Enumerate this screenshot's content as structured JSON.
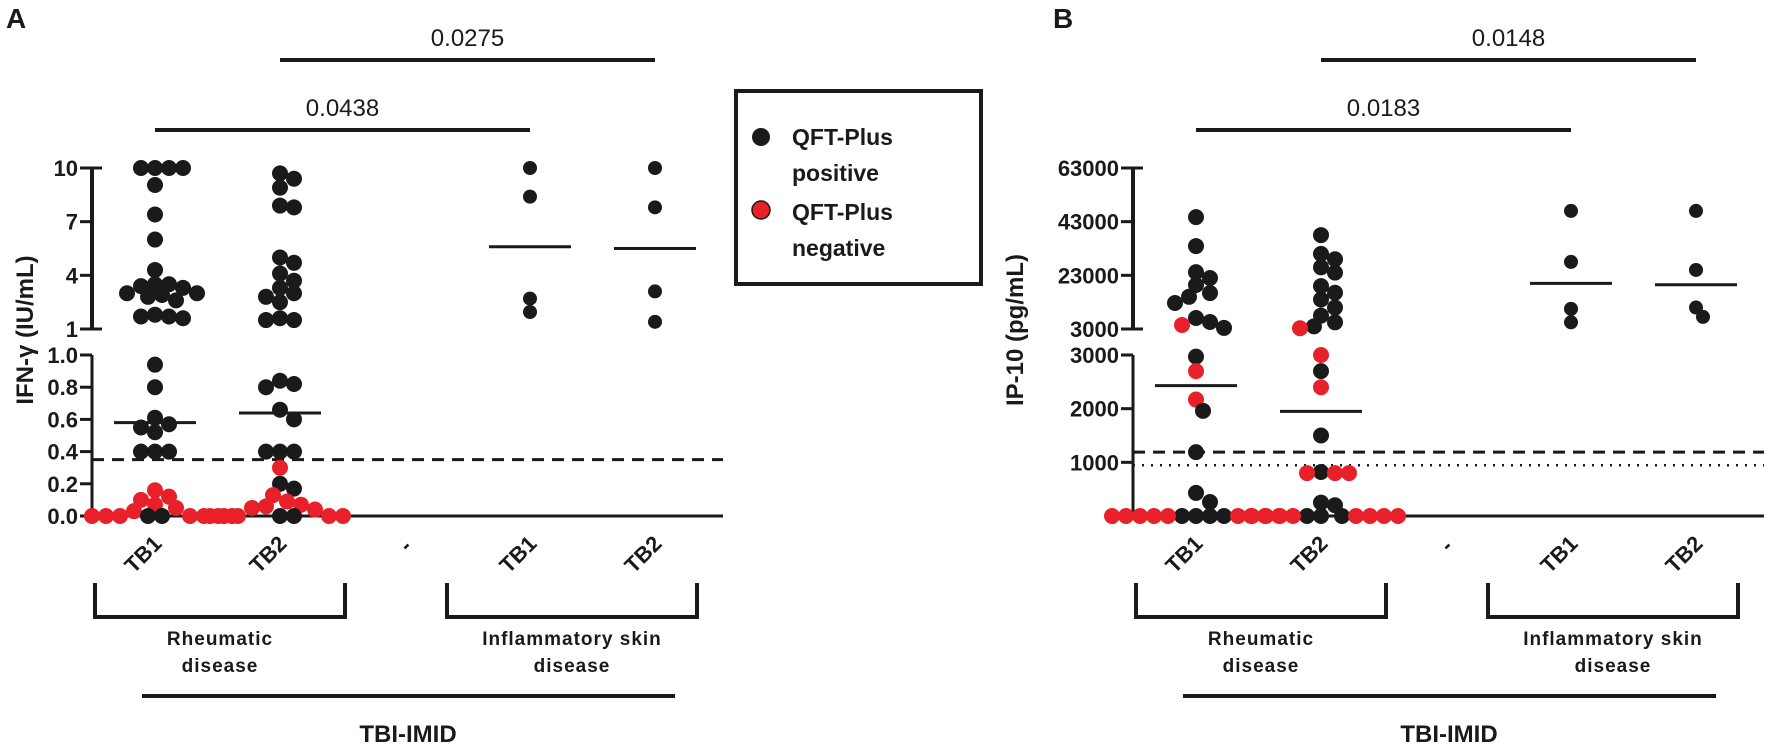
{
  "colors": {
    "positive": "#1a1a1a",
    "negative": "#e8202a",
    "ink": "#1a1a1a"
  },
  "legend": {
    "items": [
      {
        "line1": "QFT-Plus",
        "line2": "positive",
        "series": "positive"
      },
      {
        "line1": "QFT-Plus",
        "line2": "negative",
        "series": "negative"
      }
    ]
  },
  "chart_data": [
    {
      "panel": "A",
      "type": "scatter",
      "ylabel": "IFN-γ (IU/mL)",
      "xlabel": "TBI-IMID",
      "categories": [
        {
          "label": "Rheumatic disease",
          "line1": "Rheumatic",
          "line2": "disease",
          "groups": [
            0,
            1
          ]
        },
        {
          "label": "Inflammatory skin disease",
          "line1": "Inflammatory skin",
          "line2": "disease",
          "groups": [
            3,
            4
          ]
        }
      ],
      "yaxis": {
        "upper": {
          "range": [
            1,
            10
          ],
          "ticks": [
            1,
            4,
            7,
            10
          ],
          "tick_labels": [
            "1",
            "4",
            "7",
            "10"
          ]
        },
        "lower": {
          "range": [
            0,
            1
          ],
          "ticks": [
            0,
            0.2,
            0.4,
            0.6,
            0.8,
            1.0
          ],
          "tick_labels": [
            "0.0",
            "0.2",
            "0.4",
            "0.6",
            "0.8",
            "1.0"
          ]
        }
      },
      "thresholds": [
        {
          "value": 0.35,
          "style": "dashed"
        }
      ],
      "groups": [
        {
          "label": "TB1",
          "mean": 0.58,
          "positive": [
            10,
            10,
            10,
            10,
            9.05,
            7.4,
            6.0,
            4.3,
            3.5,
            3.5,
            3.4,
            3.3,
            3.0,
            3.0,
            2.9,
            2.8,
            2.6,
            1.8,
            1.7,
            1.7,
            1.6,
            0.94,
            0.8,
            0.61,
            0.57,
            0.55,
            0.52,
            0.4,
            0.4,
            0.4,
            0,
            0
          ],
          "negative": [
            0.16,
            0.12,
            0.1,
            0.07,
            0.05,
            0.03,
            0,
            0,
            0,
            0,
            0,
            0,
            0
          ]
        },
        {
          "label": "TB2",
          "mean": 0.64,
          "positive": [
            9.7,
            9.4,
            8.9,
            7.9,
            7.8,
            5.0,
            4.7,
            4.1,
            3.7,
            3.3,
            3.0,
            2.8,
            2.5,
            1.6,
            1.5,
            1.5,
            0.84,
            0.82,
            0.8,
            0.66,
            0.6,
            0.4,
            0.4,
            0.4,
            0.2,
            0.17,
            0,
            0
          ],
          "negative": [
            0.3,
            0.13,
            0.09,
            0.07,
            0.06,
            0.05,
            0.04,
            0,
            0,
            0,
            0,
            0
          ]
        },
        {
          "label": "-",
          "mean": null,
          "positive": [],
          "negative": []
        },
        {
          "label": "TB1",
          "mean": 5.6,
          "positive": [
            10,
            8.4,
            2.7,
            1.95
          ],
          "negative": []
        },
        {
          "label": "TB2",
          "mean": 5.5,
          "positive": [
            10,
            7.8,
            3.1,
            1.4
          ],
          "negative": []
        }
      ],
      "comparisons": [
        {
          "from": 0,
          "to": 3,
          "p": "0.0438",
          "level": 1
        },
        {
          "from": 1,
          "to": 4,
          "p": "0.0275",
          "level": 2
        }
      ]
    },
    {
      "panel": "B",
      "type": "scatter",
      "ylabel": "IP-10 (pg/mL)",
      "xlabel": "TBI-IMID",
      "categories": [
        {
          "label": "Rheumatic disease",
          "line1": "Rheumatic",
          "line2": "disease",
          "groups": [
            0,
            1
          ]
        },
        {
          "label": "Inflammatory skin disease",
          "line1": "Inflammatory skin",
          "line2": "disease",
          "groups": [
            3,
            4
          ]
        }
      ],
      "yaxis": {
        "upper": {
          "range": [
            3000,
            63000
          ],
          "ticks": [
            3000,
            23000,
            43000,
            63000
          ],
          "tick_labels": [
            "3000",
            "23000",
            "43000",
            "63000"
          ]
        },
        "lower": {
          "range": [
            0,
            3000
          ],
          "ticks": [
            0,
            1000,
            2000,
            3000
          ],
          "tick_labels": [
            "0",
            "1000",
            "2000",
            "3000"
          ]
        }
      },
      "thresholds": [
        {
          "value": 1190,
          "style": "dashed"
        },
        {
          "value": 945,
          "style": "dotted"
        }
      ],
      "groups": [
        {
          "label": "TB1",
          "mean": 2430,
          "positive": [
            44700,
            33900,
            24200,
            22000,
            19400,
            16400,
            15000,
            12700,
            7100,
            5600,
            3400,
            2970,
            1960,
            1190,
            430,
            260,
            0,
            0,
            0,
            0
          ],
          "negative": [
            4500,
            2700,
            2170,
            0,
            0,
            0,
            0,
            0,
            0,
            0,
            0,
            0
          ]
        },
        {
          "label": "TB2",
          "mean": 1950,
          "positive": [
            38000,
            31000,
            29000,
            26000,
            24000,
            19000,
            16500,
            14000,
            11000,
            8000,
            5500,
            4000,
            2700,
            1500,
            820,
            250,
            200,
            0,
            0,
            0
          ],
          "negative": [
            3300,
            3000,
            2400,
            800,
            800,
            800,
            0,
            0,
            0,
            0,
            0,
            0,
            0,
            0
          ]
        },
        {
          "label": "-",
          "mean": null,
          "positive": [],
          "negative": []
        },
        {
          "label": "TB1",
          "mean": 20000,
          "positive": [
            47000,
            28000,
            10500,
            5500
          ],
          "negative": []
        },
        {
          "label": "TB2",
          "mean": 19500,
          "positive": [
            47000,
            25000,
            11000,
            7500
          ],
          "negative": []
        }
      ],
      "comparisons": [
        {
          "from": 0,
          "to": 3,
          "p": "0.0183",
          "level": 1
        },
        {
          "from": 1,
          "to": 4,
          "p": "0.0148",
          "level": 2
        }
      ]
    }
  ]
}
